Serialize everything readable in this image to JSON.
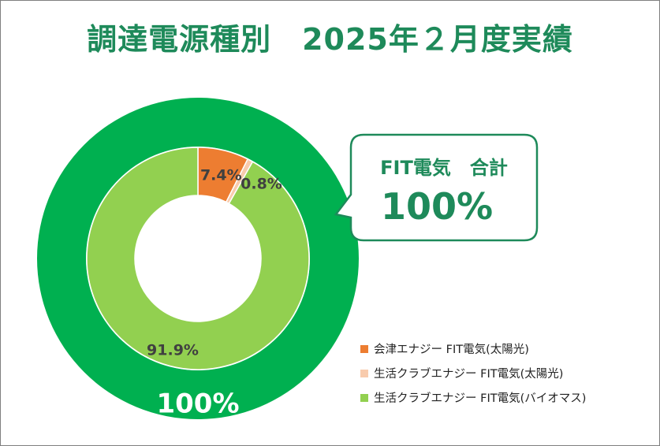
{
  "title": "調達電源種別　2025年２月度実績",
  "colors": {
    "title": "#1e8a5a",
    "outer_ring": "#00b050",
    "callout_border": "#1e8a5a"
  },
  "callout": {
    "label": "FIT電気　合計",
    "value": "100%"
  },
  "chart_data": [
    {
      "type": "pie",
      "ring": "outer",
      "categories": [
        "FIT電気"
      ],
      "values": [
        100
      ],
      "data_labels": [
        "100%"
      ],
      "colors": [
        "#00b050"
      ]
    },
    {
      "type": "pie",
      "ring": "inner",
      "categories": [
        "会津エナジー FIT電気(太陽光)",
        "生活クラブエナジー FIT電気(太陽光)",
        "生活クラブエナジー FIT電気(バイオマス)"
      ],
      "values": [
        7.4,
        0.8,
        91.9
      ],
      "data_labels": [
        "7.4%",
        "0.8%",
        "91.9%"
      ],
      "colors": [
        "#ed7d31",
        "#f8cbad",
        "#92d050"
      ],
      "legend_position": "bottom-right"
    }
  ]
}
